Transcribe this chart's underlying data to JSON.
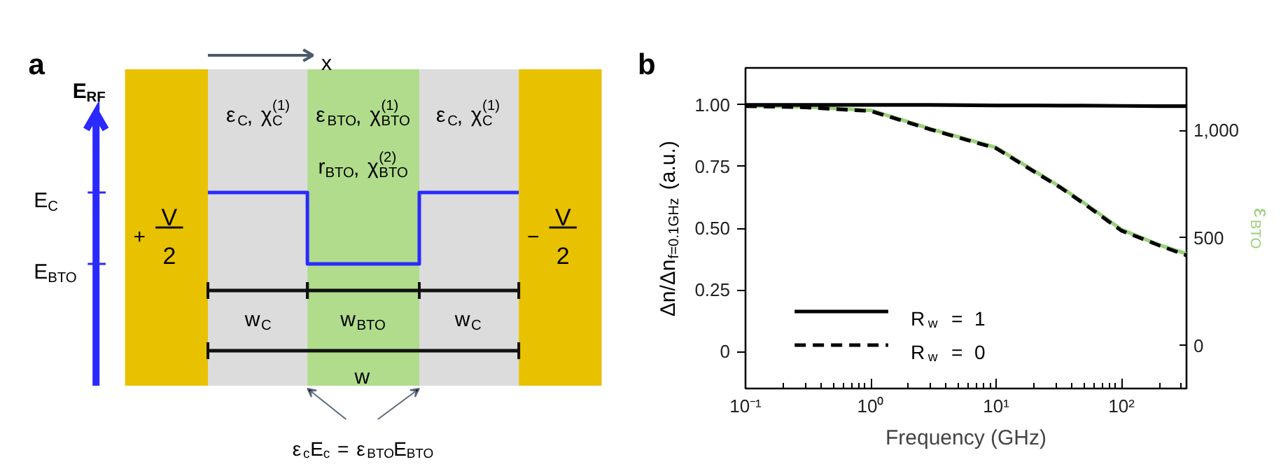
{
  "chart_data": [
    {
      "type": "other",
      "annotations": [
        "a",
        "x",
        "E$_{RF}$",
        "E$_{C}$",
        "E$_{BTO}$",
        "+",
        "V",
        "2",
        "−",
        "V",
        "2",
        "ε$_{C}$, χ$_{C}$$^{(1)}$",
        "ε$_{BTO}$, χ$_{BTO}$$^{(1)}$",
        "ε$_{C}$, χ$_{C}$$^{(1)}$",
        "r$_{BTO}$, χ$_{BTO}$$^{(2)}$",
        "w$_{C}$",
        "w$_{BTO}$",
        "w$_{C}$",
        "w",
        "ε$_{c}$E$_{c}$ = ε$_{BTO}$E$_{BTO}$"
      ]
    },
    {
      "type": "line",
      "annotations": [
        "b"
      ],
      "xlabel": "Frequency (GHz)",
      "ylabel": "Δn/Δn$_{f=0.1GHz}$ (a.u.)",
      "y2label": "ε$_{BTO}$",
      "log": "x",
      "legend": "bottom left",
      "xlim": [
        0.1,
        330
      ],
      "xticks": [
        {
          "value": 0.1,
          "label": "10⁻¹"
        },
        {
          "value": 1,
          "label": "10⁰"
        },
        {
          "value": 10,
          "label": "10¹"
        },
        {
          "value": 100,
          "label": "10²"
        }
      ],
      "ylim": [
        -0.15,
        1.15
      ],
      "yticks": [
        0,
        {
          "value": 0.25,
          "label": "0.25"
        },
        {
          "value": 0.5,
          "label": "0.50"
        },
        {
          "value": 0.75,
          "label": "0.75"
        },
        {
          "value": 1,
          "label": "1.00"
        }
      ],
      "y2lim": [
        -200,
        1290
      ],
      "y2ticks": [
        0,
        500,
        {
          "value": 1000,
          "label": "1,000"
        }
      ],
      "x": [
        0.1,
        0.3,
        1,
        2,
        3,
        10,
        20,
        33,
        50,
        100,
        200,
        330
      ],
      "series": [
        {
          "color": "#9ad07a",
          "axis": "y2",
          "line_style": "solid",
          "values": [
            1115,
            1109,
            1093,
            1039,
            1006,
            920,
            812,
            735,
            663,
            539,
            467,
            426
          ]
        },
        {
          "name": "R$_{w}$ = 1",
          "color": "#000000",
          "line_style": "solid",
          "values": [
            1.0,
            1.0,
            1.0,
            1.0,
            1.0,
            0.998,
            0.998,
            0.997,
            0.997,
            0.996,
            0.995,
            0.995
          ]
        },
        {
          "name": "R$_{w}$ = 0",
          "color": "#000000",
          "line_style": "dashed",
          "values": [
            0.995,
            0.99,
            0.975,
            0.928,
            0.9,
            0.824,
            0.73,
            0.663,
            0.6,
            0.49,
            0.43,
            0.39
          ]
        }
      ]
    }
  ]
}
